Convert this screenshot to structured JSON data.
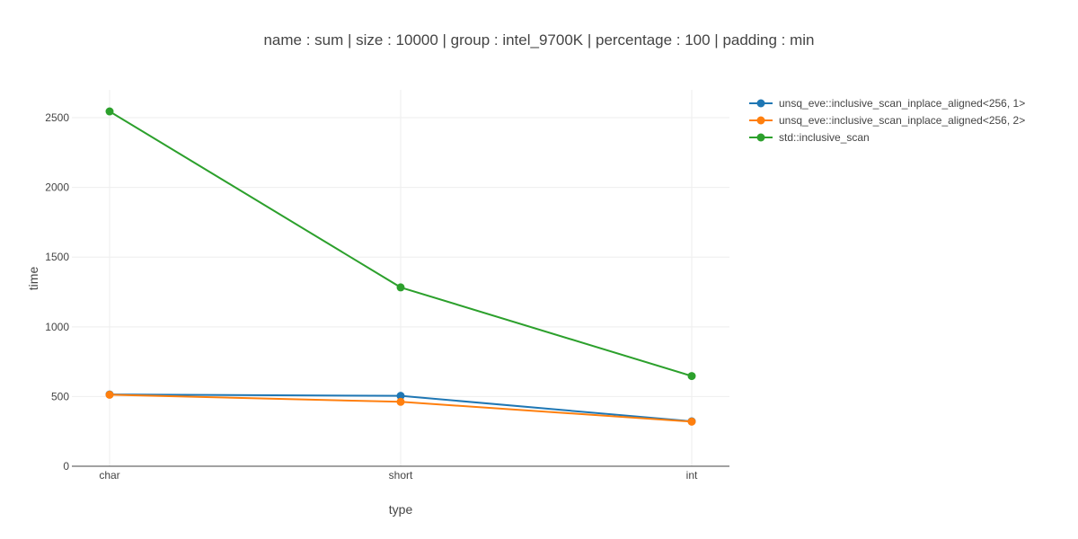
{
  "chart_data": {
    "type": "line",
    "title": "name : sum | size : 10000 | group : intel_9700K | percentage : 100 | padding : min",
    "xlabel": "type",
    "ylabel": "time",
    "categories": [
      "char",
      "short",
      "int"
    ],
    "y_ticks": [
      0,
      500,
      1000,
      1500,
      2000,
      2500
    ],
    "ylim": [
      0,
      2700
    ],
    "grid": true,
    "legend_position": "top-right",
    "series": [
      {
        "name": "unsq_eve::inclusive_scan_inplace_aligned<256, 1>",
        "color": "#1f77b4",
        "values": [
          515,
          505,
          322
        ]
      },
      {
        "name": "unsq_eve::inclusive_scan_inplace_aligned<256, 2>",
        "color": "#ff7f0e",
        "values": [
          513,
          462,
          320
        ]
      },
      {
        "name": "std::inclusive_scan",
        "color": "#2ca02c",
        "values": [
          2545,
          1283,
          647
        ]
      }
    ]
  }
}
